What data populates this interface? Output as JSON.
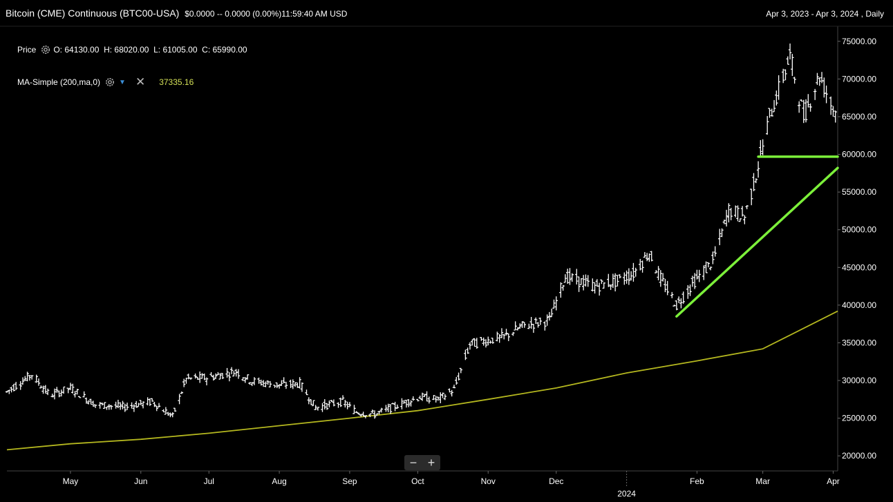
{
  "header": {
    "instrument": "Bitcoin (CME) Continuous (BTC00-USA)",
    "quote": "$0.0000 -- 0.0000 (0.00%)11:59:40 AM USD",
    "range": "Apr 3, 2023 - Apr 3, 2024 , Daily"
  },
  "legend": {
    "price_label": "Price",
    "ohlc": "O: 64130.00  H: 68020.00  L: 61005.00  C: 65990.00",
    "ma_label": "MA-Simple (200,ma,0)",
    "ma_value": "37335.16"
  },
  "zoom": {
    "minus": "−",
    "plus": "+"
  },
  "colors": {
    "background": "#000000",
    "bars": "#ffffff",
    "ma_line": "#b5b81f",
    "annotation": "#7cf03a",
    "ma_value_text": "#d4e157"
  },
  "icons": [
    "gear-icon",
    "chevron-down-icon",
    "close-icon",
    "zoom-out-icon",
    "zoom-in-icon"
  ],
  "chart_data": {
    "type": "line",
    "ylim": [
      18000,
      77000
    ],
    "x_range": [
      "2023-04-03",
      "2024-04-03"
    ],
    "yticks": [
      "75000.00",
      "70000.00",
      "65000.00",
      "60000.00",
      "55000.00",
      "50000.00",
      "45000.00",
      "40000.00",
      "35000.00",
      "30000.00",
      "25000.00",
      "20000.00"
    ],
    "ytick_values": [
      75000,
      70000,
      65000,
      60000,
      55000,
      50000,
      45000,
      40000,
      35000,
      30000,
      25000,
      20000
    ],
    "xticks": [
      {
        "label": "May",
        "date": "2023-05-01"
      },
      {
        "label": "Jun",
        "date": "2023-06-01"
      },
      {
        "label": "Jul",
        "date": "2023-07-01"
      },
      {
        "label": "Aug",
        "date": "2023-08-01"
      },
      {
        "label": "Sep",
        "date": "2023-09-01"
      },
      {
        "label": "Oct",
        "date": "2023-10-01"
      },
      {
        "label": "Nov",
        "date": "2023-11-01"
      },
      {
        "label": "Dec",
        "date": "2023-12-01"
      },
      {
        "label": "Feb",
        "date": "2024-02-01"
      },
      {
        "label": "Mar",
        "date": "2024-03-01"
      },
      {
        "label": "Apr",
        "date": "2024-04-01"
      }
    ],
    "year_marker": {
      "label": "2024",
      "date": "2024-01-01"
    },
    "price_path": [
      [
        "2023-04-03",
        28500
      ],
      [
        "2023-04-14",
        30800
      ],
      [
        "2023-04-22",
        28000
      ],
      [
        "2023-05-01",
        29000
      ],
      [
        "2023-05-12",
        26800
      ],
      [
        "2023-05-25",
        26500
      ],
      [
        "2023-06-06",
        27200
      ],
      [
        "2023-06-15",
        25200
      ],
      [
        "2023-06-21",
        30200
      ],
      [
        "2023-07-01",
        30400
      ],
      [
        "2023-07-13",
        31200
      ],
      [
        "2023-07-20",
        29900
      ],
      [
        "2023-08-01",
        29400
      ],
      [
        "2023-08-10",
        29600
      ],
      [
        "2023-08-17",
        26400
      ],
      [
        "2023-08-29",
        27200
      ],
      [
        "2023-09-04",
        25800
      ],
      [
        "2023-09-12",
        25500
      ],
      [
        "2023-09-22",
        26700
      ],
      [
        "2023-10-02",
        27800
      ],
      [
        "2023-10-10",
        27500
      ],
      [
        "2023-10-17",
        28800
      ],
      [
        "2023-10-24",
        34800
      ],
      [
        "2023-11-08",
        35800
      ],
      [
        "2023-11-16",
        37200
      ],
      [
        "2023-11-28",
        38000
      ],
      [
        "2023-12-05",
        43800
      ],
      [
        "2023-12-18",
        42500
      ],
      [
        "2023-12-28",
        43200
      ],
      [
        "2024-01-04",
        44200
      ],
      [
        "2024-01-11",
        47000
      ],
      [
        "2024-01-16",
        43500
      ],
      [
        "2024-01-23",
        40000
      ],
      [
        "2024-01-31",
        43200
      ],
      [
        "2024-02-08",
        45800
      ],
      [
        "2024-02-15",
        52600
      ],
      [
        "2024-02-22",
        51800
      ],
      [
        "2024-02-26",
        56000
      ],
      [
        "2024-03-04",
        65000
      ],
      [
        "2024-03-13",
        73000
      ],
      [
        "2024-03-19",
        65000
      ],
      [
        "2024-03-26",
        70500
      ],
      [
        "2024-04-01",
        66000
      ]
    ],
    "ma_path": [
      [
        "2023-04-03",
        20800
      ],
      [
        "2023-05-01",
        21600
      ],
      [
        "2023-06-01",
        22200
      ],
      [
        "2023-07-01",
        23000
      ],
      [
        "2023-08-01",
        24000
      ],
      [
        "2023-09-01",
        25000
      ],
      [
        "2023-10-01",
        26000
      ],
      [
        "2023-11-01",
        27500
      ],
      [
        "2023-12-01",
        29000
      ],
      [
        "2024-01-01",
        31000
      ],
      [
        "2024-02-01",
        32600
      ],
      [
        "2024-03-01",
        34200
      ],
      [
        "2024-04-03",
        39200
      ]
    ],
    "annotations": [
      {
        "type": "trendline",
        "from": [
          "2024-01-23",
          38500
        ],
        "to": [
          "2024-04-03",
          58200
        ]
      },
      {
        "type": "horizontal",
        "from": [
          "2024-02-28",
          59700
        ],
        "to": [
          "2024-04-03",
          59700
        ]
      }
    ]
  }
}
